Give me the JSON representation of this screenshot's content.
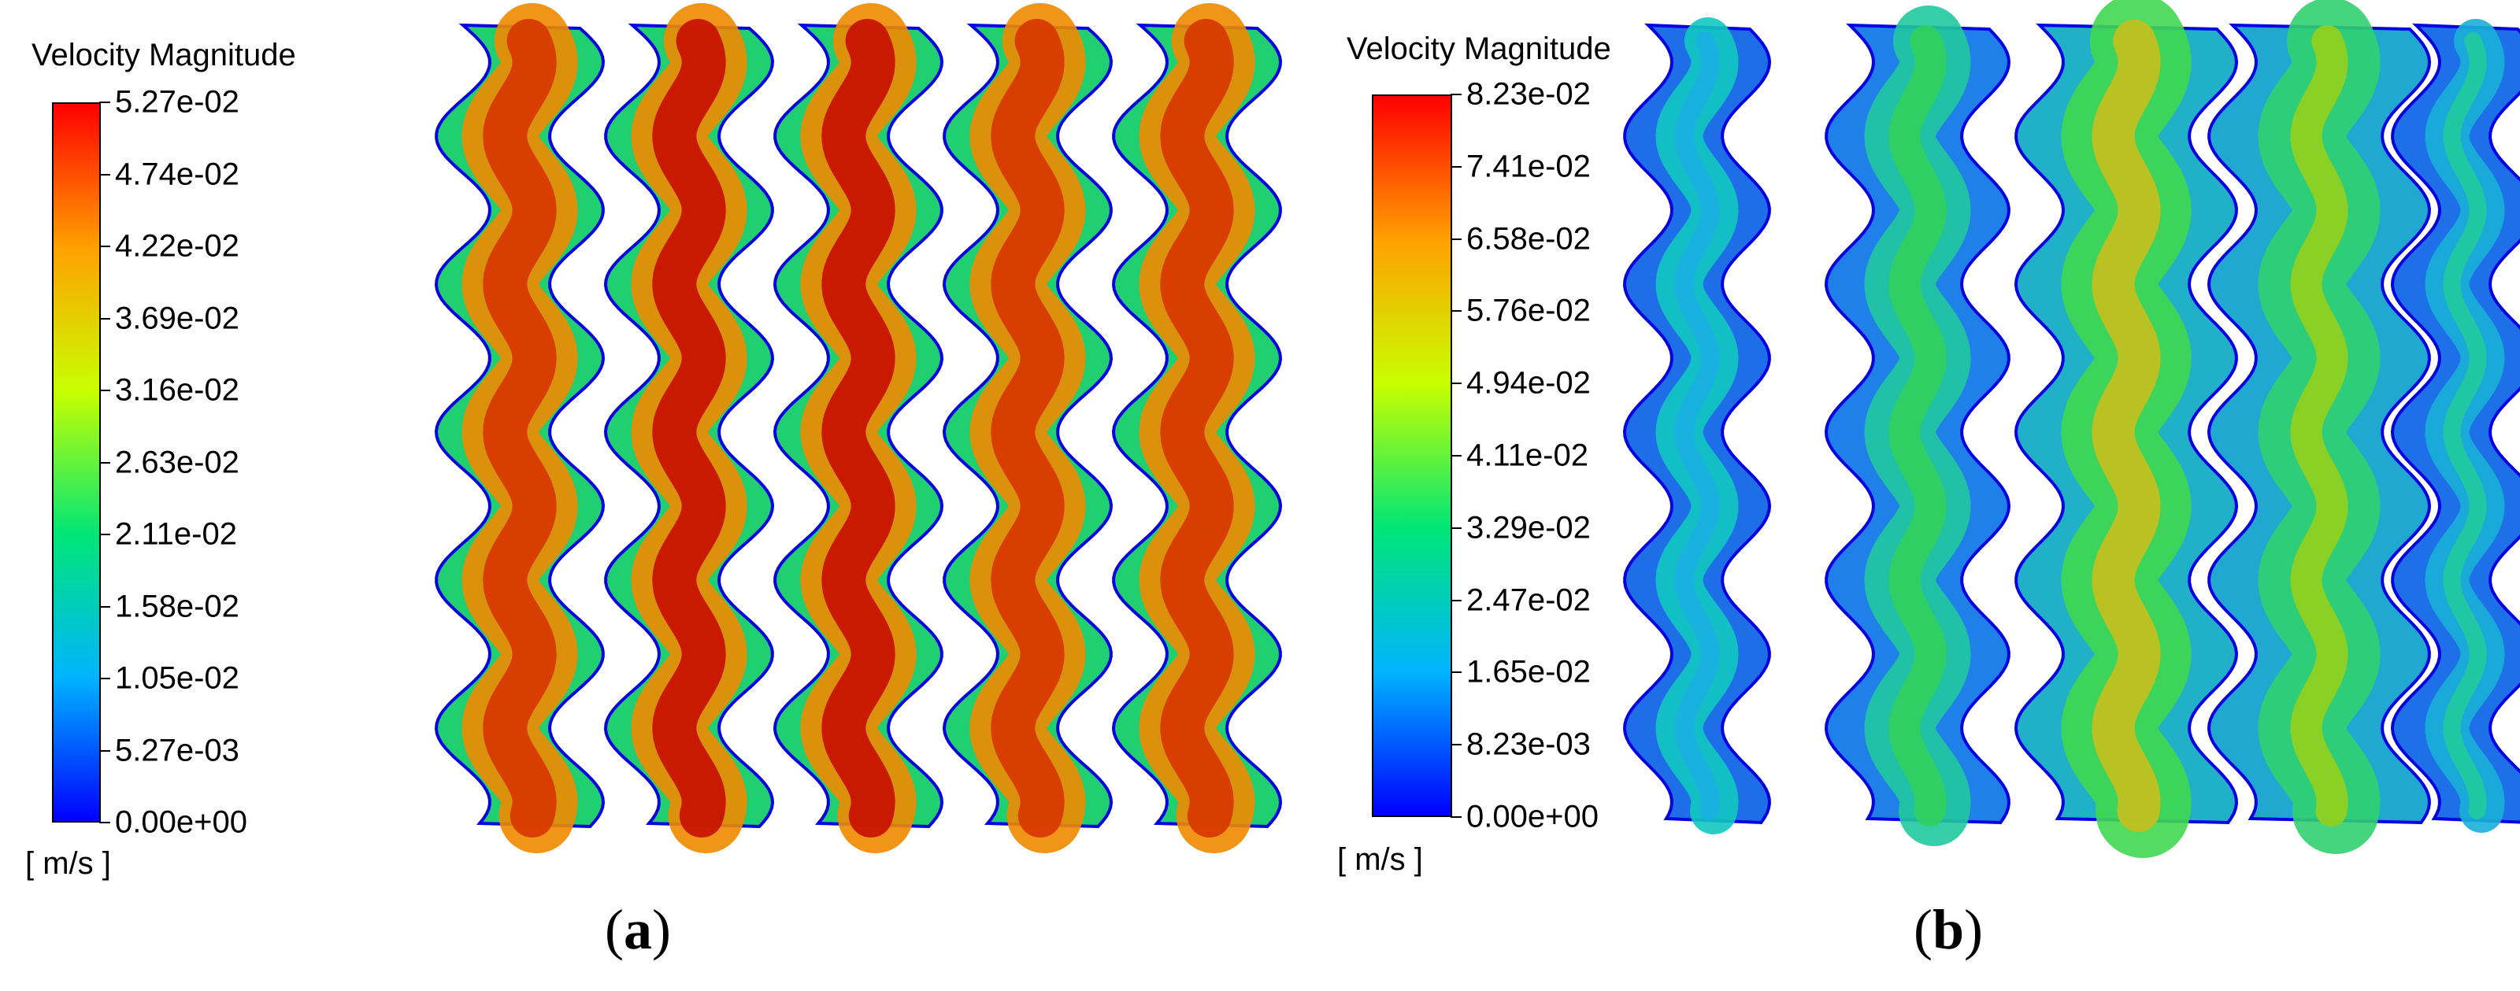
{
  "panels": [
    {
      "id": "a",
      "caption_open": "(",
      "caption_letter": "a",
      "caption_close": ")",
      "colorbar": {
        "title": "Velocity Magnitude",
        "unit": "[ m/s ]",
        "ticks": [
          "5.27e-02",
          "4.74e-02",
          "4.22e-02",
          "3.69e-02",
          "3.16e-02",
          "2.63e-02",
          "2.11e-02",
          "1.58e-02",
          "1.05e-02",
          "5.27e-03",
          "0.00e+00"
        ]
      }
    },
    {
      "id": "b",
      "caption_open": "(",
      "caption_letter": "b",
      "caption_close": ")",
      "colorbar": {
        "title": "Velocity Magnitude",
        "unit": "[ m/s ]",
        "ticks": [
          "8.23e-02",
          "7.41e-02",
          "6.58e-02",
          "5.76e-02",
          "4.94e-02",
          "4.11e-02",
          "3.29e-02",
          "2.47e-02",
          "1.65e-02",
          "8.23e-03",
          "0.00e+00"
        ]
      }
    }
  ],
  "colormap": [
    "#0000ff",
    "#00b4ff",
    "#00e676",
    "#c8ff00",
    "#ffa000",
    "#ff0000"
  ]
}
